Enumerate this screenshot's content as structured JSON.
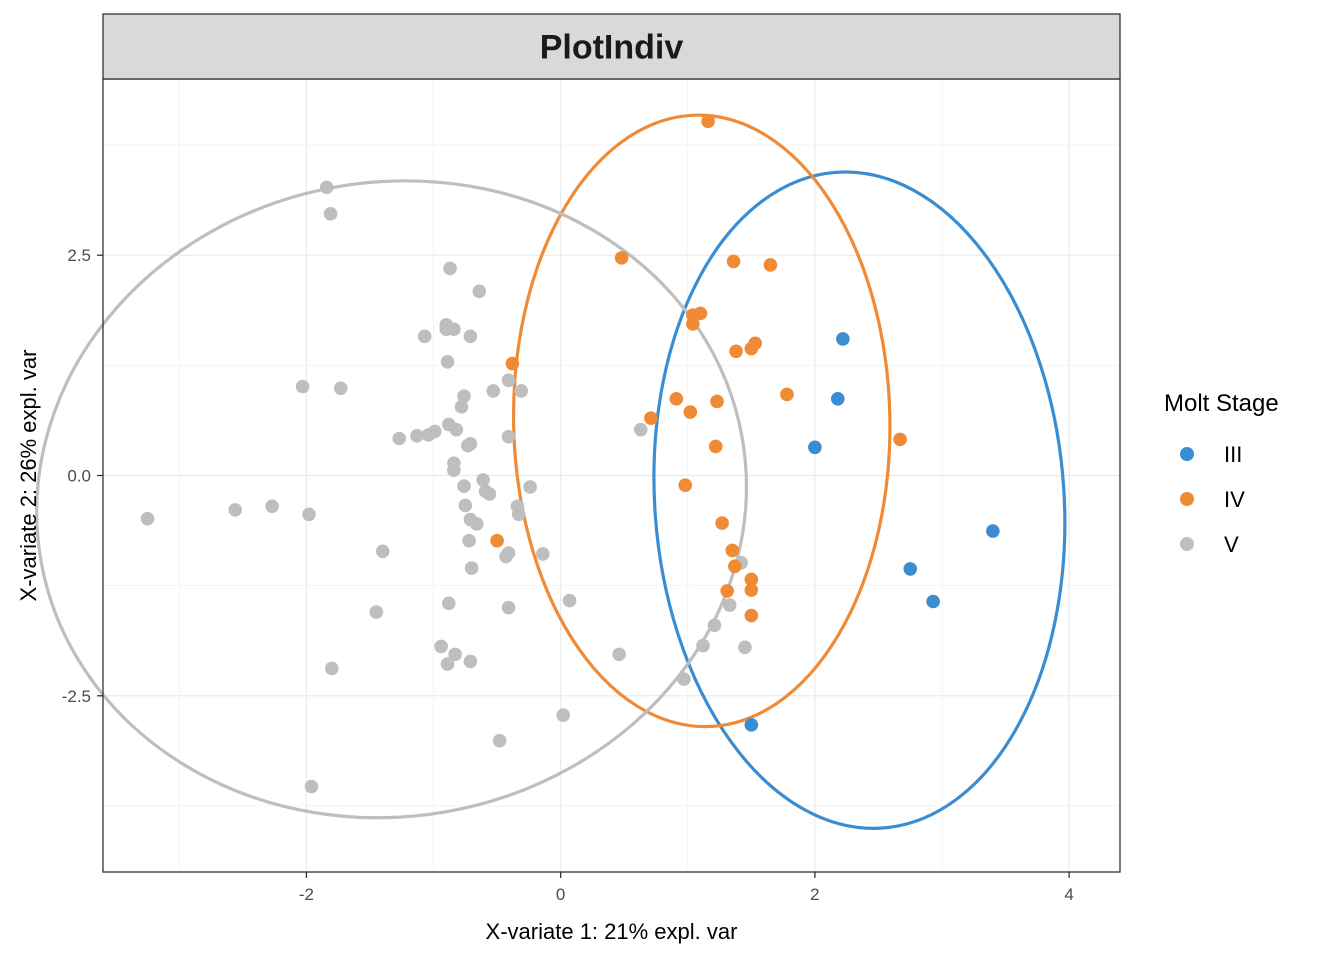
{
  "chart_data": {
    "type": "scatter",
    "title": "PlotIndiv",
    "xlabel": "X-variate 1: 21% expl. var",
    "ylabel": "X-variate 2: 26% expl. var",
    "xlim": [
      -3.6,
      4.4
    ],
    "ylim": [
      -4.5,
      4.5
    ],
    "x_ticks": [
      -2,
      0,
      2,
      4
    ],
    "y_ticks": [
      2.5,
      0.0,
      -2.5
    ],
    "x_tick_labels": [
      "-2",
      "0",
      "2",
      "4"
    ],
    "y_tick_labels": [
      "2.5",
      "0.0",
      "-2.5"
    ],
    "grid": true,
    "legend": {
      "title": "Molt Stage",
      "position": "right"
    },
    "series": [
      {
        "name": "III",
        "color": "#3a8dd0",
        "ellipse": {
          "cx": 2.35,
          "cy": -0.28,
          "rx": 1.61,
          "ry": 3.73,
          "angle": -4
        },
        "points": [
          [
            2.22,
            1.55
          ],
          [
            2.18,
            0.87
          ],
          [
            2.0,
            0.32
          ],
          [
            3.4,
            -0.63
          ],
          [
            2.75,
            -1.06
          ],
          [
            2.93,
            -1.43
          ],
          [
            1.5,
            -2.83
          ]
        ]
      },
      {
        "name": "IV",
        "color": "#f08a35",
        "ellipse": {
          "cx": 1.11,
          "cy": 0.62,
          "rx": 1.48,
          "ry": 3.47,
          "angle": -1
        },
        "points": [
          [
            1.16,
            4.02
          ],
          [
            0.48,
            2.47
          ],
          [
            1.36,
            2.43
          ],
          [
            1.65,
            2.39
          ],
          [
            1.1,
            1.84
          ],
          [
            1.04,
            1.82
          ],
          [
            1.04,
            1.72
          ],
          [
            1.53,
            1.5
          ],
          [
            1.5,
            1.44
          ],
          [
            1.38,
            1.41
          ],
          [
            -0.38,
            1.27
          ],
          [
            1.78,
            0.92
          ],
          [
            0.91,
            0.87
          ],
          [
            1.23,
            0.84
          ],
          [
            1.02,
            0.72
          ],
          [
            0.71,
            0.65
          ],
          [
            2.67,
            0.41
          ],
          [
            1.22,
            0.33
          ],
          [
            0.98,
            -0.11
          ],
          [
            1.27,
            -0.54
          ],
          [
            -0.5,
            -0.74
          ],
          [
            1.35,
            -0.85
          ],
          [
            1.37,
            -1.03
          ],
          [
            1.5,
            -1.18
          ],
          [
            1.5,
            -1.3
          ],
          [
            1.31,
            -1.31
          ],
          [
            1.5,
            -1.59
          ]
        ]
      },
      {
        "name": "V",
        "color": "#bebebe",
        "ellipse": {
          "cx": -1.33,
          "cy": -0.27,
          "rx": 2.8,
          "ry": 3.6,
          "angle": -10
        },
        "points": [
          [
            -1.84,
            3.27
          ],
          [
            -1.81,
            2.97
          ],
          [
            -0.87,
            2.35
          ],
          [
            -0.64,
            2.09
          ],
          [
            -0.9,
            1.71
          ],
          [
            -0.9,
            1.66
          ],
          [
            -0.84,
            1.66
          ],
          [
            -1.07,
            1.58
          ],
          [
            -0.71,
            1.58
          ],
          [
            -0.89,
            1.29
          ],
          [
            -0.41,
            1.08
          ],
          [
            -2.03,
            1.01
          ],
          [
            -1.73,
            0.99
          ],
          [
            -0.53,
            0.96
          ],
          [
            -0.31,
            0.96
          ],
          [
            -0.76,
            0.9
          ],
          [
            -0.78,
            0.78
          ],
          [
            -0.88,
            0.58
          ],
          [
            -0.82,
            0.52
          ],
          [
            -0.99,
            0.5
          ],
          [
            -1.04,
            0.46
          ],
          [
            -1.13,
            0.45
          ],
          [
            -1.27,
            0.42
          ],
          [
            -0.41,
            0.44
          ],
          [
            -0.71,
            0.36
          ],
          [
            -0.73,
            0.34
          ],
          [
            0.63,
            0.52
          ],
          [
            -0.84,
            0.14
          ],
          [
            -0.84,
            0.06
          ],
          [
            -0.61,
            -0.05
          ],
          [
            -0.76,
            -0.12
          ],
          [
            -0.59,
            -0.18
          ],
          [
            -0.24,
            -0.13
          ],
          [
            -0.56,
            -0.21
          ],
          [
            -3.25,
            -0.49
          ],
          [
            -2.56,
            -0.39
          ],
          [
            -2.27,
            -0.35
          ],
          [
            -1.98,
            -0.44
          ],
          [
            -0.75,
            -0.34
          ],
          [
            -0.34,
            -0.35
          ],
          [
            -0.71,
            -0.5
          ],
          [
            -0.33,
            -0.44
          ],
          [
            -0.66,
            -0.55
          ],
          [
            -0.72,
            -0.74
          ],
          [
            -1.4,
            -0.86
          ],
          [
            -0.41,
            -0.88
          ],
          [
            -0.43,
            -0.92
          ],
          [
            -0.14,
            -0.89
          ],
          [
            -0.7,
            -1.05
          ],
          [
            -1.45,
            -1.55
          ],
          [
            -0.88,
            -1.45
          ],
          [
            -0.41,
            -1.5
          ],
          [
            0.07,
            -1.42
          ],
          [
            1.42,
            -0.99
          ],
          [
            1.33,
            -1.47
          ],
          [
            1.21,
            -1.7
          ],
          [
            1.12,
            -1.93
          ],
          [
            1.45,
            -1.95
          ],
          [
            0.46,
            -2.03
          ],
          [
            -0.94,
            -1.94
          ],
          [
            -0.83,
            -2.03
          ],
          [
            -0.71,
            -2.11
          ],
          [
            -0.89,
            -2.14
          ],
          [
            -1.8,
            -2.19
          ],
          [
            0.97,
            -2.31
          ],
          [
            0.02,
            -2.72
          ],
          [
            -0.48,
            -3.01
          ],
          [
            -1.96,
            -3.53
          ]
        ]
      }
    ]
  }
}
